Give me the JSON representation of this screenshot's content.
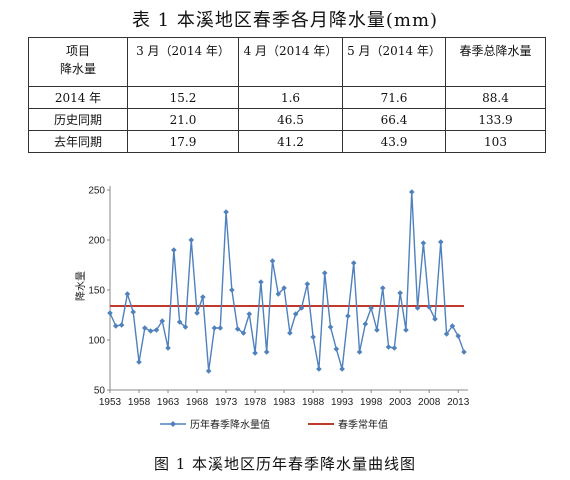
{
  "table": {
    "title": "表 1 本溪地区春季各月降水量(mm)",
    "header": {
      "corner_line1": "项目",
      "corner_line2": "降水量",
      "col1": "3 月（2014 年）",
      "col2": "4 月（2014 年）",
      "col3": "5 月（2014 年）",
      "col4": "春季总降水量"
    },
    "rows": [
      {
        "label": "2014 年",
        "values": [
          "15.2",
          "1.6",
          "71.6",
          "88.4"
        ]
      },
      {
        "label": "历史同期",
        "values": [
          "21.0",
          "46.5",
          "66.4",
          "133.9"
        ]
      },
      {
        "label": "去年同期",
        "values": [
          "17.9",
          "41.2",
          "43.9",
          "103"
        ]
      }
    ]
  },
  "figure": {
    "caption": "图 1 本溪地区历年春季降水量曲线图"
  },
  "colors": {
    "series_line": "#4f81bd",
    "normal_line": "#c0392b"
  },
  "chart_data": {
    "type": "line",
    "ylabel": "降水量",
    "ylim": [
      50,
      250
    ],
    "yticks": [
      50,
      100,
      150,
      200,
      250
    ],
    "xlim": [
      1953,
      2014
    ],
    "xticks": [
      "1953",
      "1958",
      "1963",
      "1968",
      "1973",
      "1978",
      "1983",
      "1988",
      "1993",
      "1998",
      "2003",
      "2008",
      "2013"
    ],
    "legend_position": "bottom",
    "grid": false,
    "x": [
      1953,
      1954,
      1955,
      1956,
      1957,
      1958,
      1959,
      1960,
      1961,
      1962,
      1963,
      1964,
      1965,
      1966,
      1967,
      1968,
      1969,
      1970,
      1971,
      1972,
      1973,
      1974,
      1975,
      1976,
      1977,
      1978,
      1979,
      1980,
      1981,
      1982,
      1983,
      1984,
      1985,
      1986,
      1987,
      1988,
      1989,
      1990,
      1991,
      1992,
      1993,
      1994,
      1995,
      1996,
      1997,
      1998,
      1999,
      2000,
      2001,
      2002,
      2003,
      2004,
      2005,
      2006,
      2007,
      2008,
      2009,
      2010,
      2011,
      2012,
      2013,
      2014
    ],
    "series": [
      {
        "name": "历年春季降水量值",
        "values": [
          127,
          114,
          115,
          146,
          128,
          78,
          112,
          109,
          110,
          119,
          92,
          190,
          118,
          113,
          200,
          127,
          143,
          69,
          112,
          112,
          228,
          150,
          111,
          107,
          126,
          87,
          158,
          88,
          179,
          146,
          152,
          107,
          126,
          132,
          156,
          103,
          71,
          167,
          113,
          91,
          71,
          124,
          177,
          88,
          116,
          132,
          110,
          152,
          93,
          92,
          147,
          110,
          248,
          132,
          197,
          133,
          121,
          198,
          106,
          114,
          104,
          88
        ]
      },
      {
        "name": "春季常年值",
        "values": [
          134,
          134,
          134,
          134,
          134,
          134,
          134,
          134,
          134,
          134,
          134,
          134,
          134,
          134,
          134,
          134,
          134,
          134,
          134,
          134,
          134,
          134,
          134,
          134,
          134,
          134,
          134,
          134,
          134,
          134,
          134,
          134,
          134,
          134,
          134,
          134,
          134,
          134,
          134,
          134,
          134,
          134,
          134,
          134,
          134,
          134,
          134,
          134,
          134,
          134,
          134,
          134,
          134,
          134,
          134,
          134,
          134,
          134,
          134,
          134,
          134,
          134
        ]
      }
    ]
  }
}
